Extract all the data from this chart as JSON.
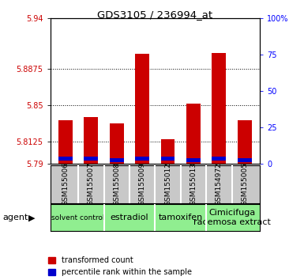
{
  "title": "GDS3105 / 236994_at",
  "samples": [
    "GSM155006",
    "GSM155007",
    "GSM155008",
    "GSM155009",
    "GSM155012",
    "GSM155013",
    "GSM154972",
    "GSM155005"
  ],
  "red_values": [
    5.835,
    5.838,
    5.832,
    5.903,
    5.815,
    5.852,
    5.904,
    5.835
  ],
  "blue_bottom": [
    5.793,
    5.793,
    5.792,
    5.793,
    5.793,
    5.792,
    5.793,
    5.792
  ],
  "blue_heights": [
    0.004,
    0.004,
    0.004,
    0.004,
    0.004,
    0.004,
    0.004,
    0.004
  ],
  "ymin": 5.79,
  "ymax": 5.94,
  "yticks": [
    5.79,
    5.8125,
    5.85,
    5.8875,
    5.94
  ],
  "ytick_labels": [
    "5.79",
    "5.8125",
    "5.85",
    "5.8875",
    "5.94"
  ],
  "right_yticks": [
    0,
    25,
    50,
    75,
    100
  ],
  "right_ytick_labels": [
    "0",
    "25",
    "50",
    "75",
    "100%"
  ],
  "grid_yticks": [
    5.8125,
    5.85,
    5.8875
  ],
  "groups": [
    {
      "label": "solvent control",
      "start": 0,
      "end": 2,
      "small": true
    },
    {
      "label": "estradiol",
      "start": 2,
      "end": 4,
      "small": false
    },
    {
      "label": "tamoxifen",
      "start": 4,
      "end": 6,
      "small": false
    },
    {
      "label": "Cimicifuga\nracemosa extract",
      "start": 6,
      "end": 8,
      "small": false
    }
  ],
  "agent_label": "agent",
  "bar_color_red": "#cc0000",
  "bar_color_blue": "#0000cc",
  "bg_plot": "#ffffff",
  "bg_sample_area": "#c8c8c8",
  "bg_group": "#90ee90",
  "left_label_color": "#cc0000",
  "right_label_color": "#0000ff",
  "bar_width": 0.55
}
